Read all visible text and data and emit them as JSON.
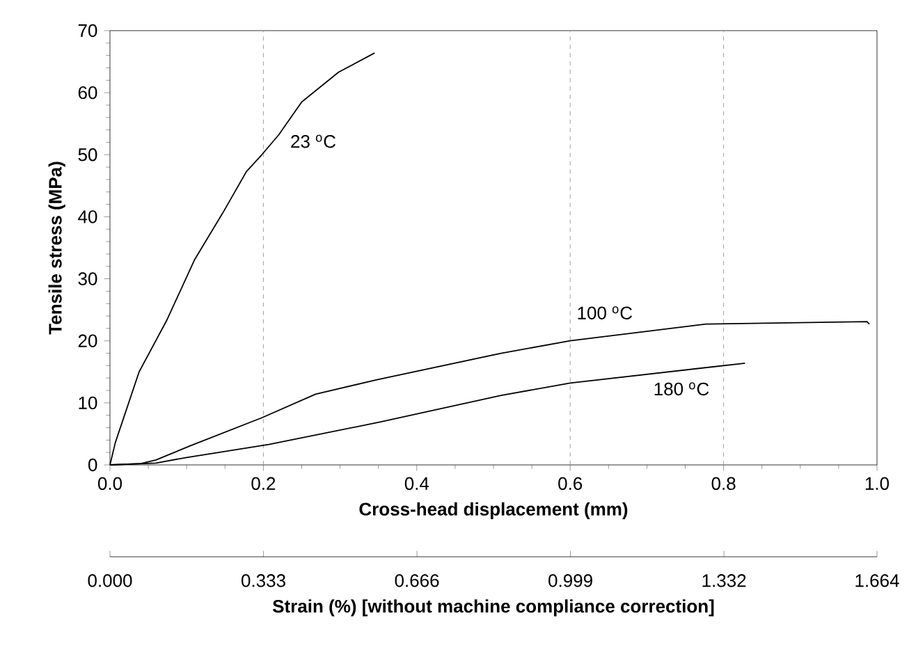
{
  "chart_data": {
    "type": "line",
    "xlabel": "Cross-head displacement (mm)",
    "ylabel": "Tensile stress (MPa)",
    "x2label": "Strain (%) [without machine compliance correction]",
    "xlim": [
      0,
      1.0
    ],
    "ylim": [
      0,
      70
    ],
    "xticks": [
      {
        "value": 0,
        "label": "0.0"
      },
      0.2,
      0.4,
      0.6,
      0.8,
      {
        "value": 1.0,
        "label": "1.0"
      }
    ],
    "yticks": [
      0,
      10,
      20,
      30,
      40,
      50,
      60,
      70
    ],
    "x2lim": [
      0,
      1.664
    ],
    "x2ticks": [
      {
        "value": 0,
        "label": "0.000"
      },
      0.333,
      0.666,
      0.999,
      1.332,
      1.664
    ],
    "grid": false,
    "marker": "none",
    "line_style": "solid",
    "ref_lines": [
      {
        "axis": "x",
        "value": 0.2,
        "color": "#a0a0a0",
        "line_style": "dashed"
      },
      {
        "axis": "x",
        "value": 0.6,
        "color": "#a0a0a0",
        "line_style": "dashed"
      },
      {
        "axis": "x",
        "value": 0.8,
        "color": "#a0a0a0",
        "line_style": "dashed"
      }
    ],
    "annotations": [
      "23 $^{o}$C",
      "100 $^{o}$C",
      "180 $^{o}$C"
    ],
    "series": [
      {
        "color": "#000000",
        "x": [
          0,
          0.007,
          0.038,
          0.074,
          0.11,
          0.147,
          0.178,
          0.198,
          0.22,
          0.25,
          0.298,
          0.345
        ],
        "values": [
          0,
          3.6,
          15,
          23.3,
          33,
          40.6,
          47.3,
          50,
          53.2,
          58.5,
          63.3,
          66.4
        ]
      },
      {
        "color": "#000000",
        "x": [
          0,
          0.04,
          0.06,
          0.105,
          0.198,
          0.268,
          0.347,
          0.51,
          0.6,
          0.777,
          0.987,
          0.99
        ],
        "values": [
          0,
          0.2,
          0.8,
          3.1,
          7.6,
          11.4,
          13.7,
          18,
          20,
          22.7,
          23.1,
          22.7
        ]
      },
      {
        "color": "#000000",
        "x": [
          0,
          0.06,
          0.1,
          0.207,
          0.352,
          0.51,
          0.6,
          0.828
        ],
        "values": [
          0,
          0.3,
          1.2,
          3.3,
          6.9,
          11.2,
          13.2,
          16.4
        ]
      }
    ]
  }
}
